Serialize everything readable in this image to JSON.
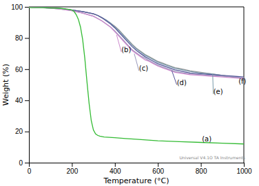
{
  "chart_data": {
    "type": "line",
    "title": "",
    "x_label": "Temperature (°C)",
    "y_label": "Weight (%)",
    "xlim": [
      0,
      1000
    ],
    "ylim": [
      0,
      100
    ],
    "xticks": [
      0,
      200,
      400,
      600,
      800,
      1000
    ],
    "yticks": [
      0,
      20,
      40,
      60,
      80,
      100
    ],
    "series": [
      {
        "color": "#999999",
        "x": [
          0,
          50,
          100,
          150,
          200,
          250,
          300,
          320,
          340,
          360,
          380,
          400,
          420,
          440,
          460,
          480,
          500,
          520,
          540,
          560,
          580,
          600,
          620,
          640,
          660,
          680,
          700,
          750,
          800,
          850,
          900,
          950,
          1000
        ],
        "values": [
          99.8,
          99.5,
          99.3,
          98.8,
          98,
          97,
          95.5,
          94.5,
          93,
          91.5,
          89.5,
          87.5,
          85,
          82,
          79,
          76,
          73.5,
          71.5,
          69.5,
          68,
          66.5,
          65,
          64,
          63,
          62,
          61,
          60.5,
          59,
          58,
          57,
          56,
          55,
          54
        ]
      },
      {
        "color": "#7799aa",
        "x": [
          0,
          50,
          100,
          150,
          200,
          250,
          300,
          320,
          340,
          360,
          380,
          400,
          420,
          440,
          460,
          480,
          500,
          520,
          540,
          560,
          580,
          600,
          620,
          640,
          660,
          680,
          700,
          750,
          800,
          850,
          900,
          950,
          1000
        ],
        "values": [
          99.8,
          99.5,
          99.3,
          98.8,
          98,
          97,
          95.5,
          94.5,
          93,
          91.5,
          89.5,
          87,
          84.5,
          81.5,
          78.5,
          75.5,
          73,
          71,
          69,
          67.5,
          66,
          64.5,
          63.5,
          62.5,
          61.5,
          60.5,
          60,
          58.5,
          57.5,
          57,
          56,
          55,
          54
        ]
      },
      {
        "color": "#555599",
        "x": [
          0,
          50,
          100,
          150,
          200,
          250,
          300,
          320,
          340,
          360,
          380,
          400,
          420,
          440,
          460,
          480,
          500,
          520,
          540,
          560,
          580,
          600,
          620,
          640,
          660,
          680,
          700,
          750,
          800,
          850,
          900,
          950,
          1000
        ],
        "values": [
          99.8,
          99.5,
          99.3,
          98.8,
          98,
          97,
          95.5,
          94.5,
          93,
          91,
          89,
          86.5,
          83.5,
          80.5,
          77.5,
          74.5,
          72,
          70,
          68,
          66.5,
          65,
          63.5,
          62.5,
          61.5,
          60.5,
          59.5,
          59,
          57.5,
          57,
          56.5,
          56,
          55.5,
          55
        ]
      },
      {
        "color": "#9999bb",
        "x": [
          0,
          50,
          100,
          150,
          200,
          250,
          300,
          320,
          340,
          360,
          380,
          400,
          420,
          440,
          460,
          480,
          500,
          520,
          540,
          560,
          580,
          600,
          620,
          640,
          660,
          680,
          700,
          750,
          800,
          850,
          900,
          950,
          1000
        ],
        "values": [
          99.8,
          99.5,
          99.2,
          98.5,
          97.5,
          96,
          94,
          92.5,
          91,
          89,
          87,
          84.5,
          81.5,
          78.5,
          75.5,
          72.5,
          70.5,
          68.5,
          67,
          65.5,
          64,
          62.5,
          61.5,
          60.5,
          59.5,
          58.5,
          58,
          57,
          56.5,
          56,
          55.5,
          55,
          54.5
        ]
      },
      {
        "color": "#cc88cc",
        "x": [
          0,
          50,
          100,
          150,
          200,
          250,
          300,
          320,
          340,
          360,
          380,
          400,
          420,
          440,
          460,
          480,
          500,
          520,
          540,
          560,
          580,
          600,
          620,
          640,
          660,
          680,
          700,
          750,
          800,
          850,
          900,
          950,
          1000
        ],
        "values": [
          99.8,
          99.5,
          99.2,
          98.5,
          97.5,
          96,
          94,
          92.5,
          91,
          89,
          87,
          84,
          81,
          78,
          75,
          72,
          70,
          68,
          66,
          65,
          63.5,
          62,
          61,
          60,
          59,
          58,
          57.5,
          56.5,
          56,
          55.5,
          55,
          54.5,
          54
        ]
      },
      {
        "color": "#33bb33",
        "x": [
          0,
          50,
          100,
          150,
          180,
          200,
          210,
          220,
          230,
          240,
          250,
          260,
          270,
          280,
          290,
          300,
          310,
          320,
          330,
          350,
          400,
          450,
          500,
          600,
          700,
          800,
          900,
          1000
        ],
        "values": [
          99.5,
          99.5,
          99.3,
          99,
          98.5,
          98,
          97,
          95,
          92,
          87,
          79,
          67,
          52,
          38,
          27,
          21,
          18.5,
          17.5,
          17,
          16.5,
          16,
          15.5,
          15,
          14,
          13.5,
          13,
          12.5,
          12
        ]
      }
    ],
    "annotations": [
      {
        "text": "(a)",
        "xy": [
          770,
          13.5
        ],
        "xytext": [
          805,
          13.5
        ],
        "color": "black"
      },
      {
        "text": "(b)",
        "xy": [
          408,
          82
        ],
        "xytext": [
          430,
          71
        ],
        "color": "black",
        "line_color": "#cc88cc"
      },
      {
        "text": "(c)",
        "xy": [
          490,
          70
        ],
        "xytext": [
          512,
          59
        ],
        "color": "black",
        "line_color": "#9999bb"
      },
      {
        "text": "(d)",
        "xy": [
          665,
          59
        ],
        "xytext": [
          688,
          50
        ],
        "color": "black",
        "line_color": "#555599"
      },
      {
        "text": "(e)",
        "xy": [
          855,
          57
        ],
        "xytext": [
          858,
          44
        ],
        "color": "black",
        "line_color": "#7799aa"
      },
      {
        "text": "(f)",
        "xy": [
          985,
          54
        ],
        "xytext": [
          975,
          50.5
        ],
        "color": "black"
      }
    ],
    "watermark": "Universal V4.1O TA Instruments"
  }
}
